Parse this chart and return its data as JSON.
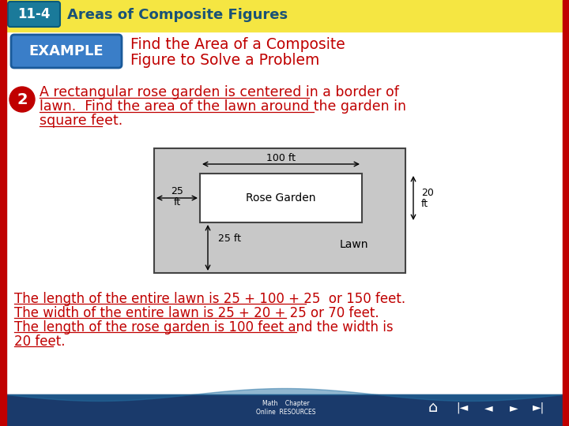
{
  "bg_color": "#ffffff",
  "header_bg": "#f5e642",
  "header_text": "Areas of Composite Figures",
  "header_label": "11-4",
  "header_label_bg": "#2ecc40",
  "example_bg": "#5b9bd5",
  "example_text": "EXAMPLE",
  "title_text_line1": "Find the Area of a Composite",
  "title_text_line2": "Figure to Solve a Problem",
  "title_color": "#c00000",
  "problem_number_bg": "#c00000",
  "problem_number_text": "2",
  "problem_text_line1": "A rectangular rose garden is centered in a border of",
  "problem_text_line2": "lawn.  Find the area of the lawn around the garden in",
  "problem_text_line3": "square feet.",
  "problem_text_color": "#c00000",
  "diagram_bg": "#c8c8c8",
  "diagram_inner_bg": "#ffffff",
  "diagram_label_rose": "Rose Garden",
  "diagram_label_lawn": "Lawn",
  "diagram_dim_100": "100 ft",
  "diagram_dim_25left_a": "25",
  "diagram_dim_25left_b": "ft",
  "diagram_dim_25bot": "25 ft",
  "diagram_dim_20a": "20",
  "diagram_dim_20b": "ft",
  "solution_line1": "The length of the entire lawn is 25 + 100 + 25  or 150 feet.",
  "solution_line2": "The width of the entire lawn is 25 + 20 + 25 or 70 feet.",
  "solution_line3": "The length of the rose garden is 100 feet and the width is",
  "solution_line4": "20 feet.",
  "solution_color": "#c00000",
  "left_border_color": "#c00000",
  "right_border_color": "#c00000",
  "bottom_bar_color": "#1a3a6b",
  "footer_wave_color": "#2471a3",
  "header_text_color": "#1a5276"
}
